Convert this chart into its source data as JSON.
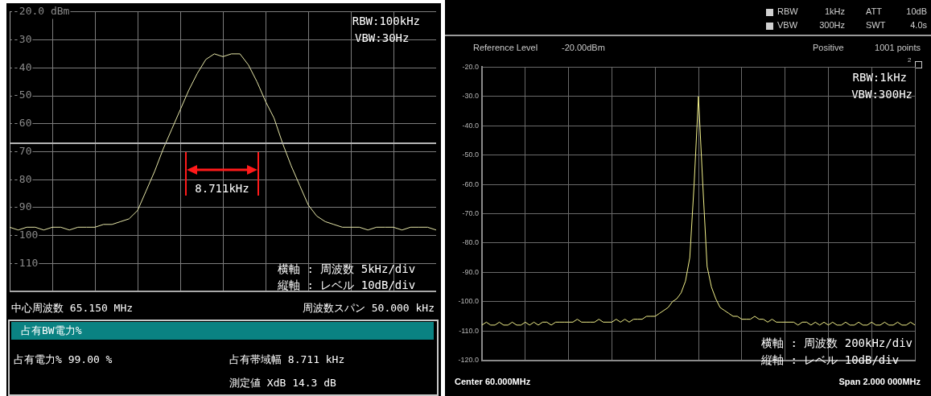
{
  "chart_data": [
    {
      "type": "line",
      "categories": [
        null,
        null,
        null,
        null,
        null,
        null,
        null,
        null,
        null,
        null,
        null,
        null,
        null,
        null,
        null,
        null,
        null,
        null,
        null,
        null,
        null,
        null,
        null,
        null,
        null,
        null,
        null,
        null,
        null,
        null,
        null,
        null,
        null,
        null,
        null,
        null,
        null,
        null,
        null,
        null,
        null,
        null,
        null,
        null,
        null,
        null,
        null,
        null,
        null,
        null,
        null
      ],
      "series": [
        {
          "color": "#e6e6a8",
          "values": [
            -97,
            -98,
            -97,
            -97,
            -98,
            -97,
            -97,
            -98,
            -97,
            -97,
            -97,
            -96,
            -96,
            -95,
            -94,
            -91,
            -84,
            -77,
            -69,
            -62,
            -55,
            -48,
            -42,
            -37,
            -35,
            -36,
            -35,
            -35,
            -39,
            -45,
            -52,
            -58,
            -67,
            -75,
            -82,
            -89,
            -93,
            -95,
            -96,
            -97,
            -97,
            -97,
            -98,
            -97,
            -97,
            -97,
            -98,
            -97,
            -97,
            -97,
            -98
          ]
        }
      ],
      "ylim": [
        -120,
        -20
      ],
      "yticks": [
        {
          "value": -20,
          "label": "-20.0 dBm"
        },
        -30,
        -40,
        -50,
        -60,
        -70,
        -80,
        -90,
        -100,
        -110,
        {
          "value": -120,
          "label": null
        }
      ],
      "grid": true,
      "marker": "none",
      "tick_labels": "y",
      "ref_lines": [
        {
          "axis": "y",
          "value": -67,
          "label": null,
          "color": "#b4b4b4"
        }
      ],
      "annotations": [
        "RBW:100kHz",
        "VBW:30Hz",
        "8.711kHz",
        "横軸 : 周波数 5kHz/div",
        "縦軸 : レベル 10dB/div",
        "中心周波数 65.150 MHz",
        "周波数スパン 50.000 kHz",
        "占有BW電力%",
        "占有電力% 99.00 %",
        "占有帯域幅 8.711 kHz",
        "測定値 XdB 14.3 dB"
      ]
    },
    {
      "type": "line",
      "categories": [
        null,
        null,
        null,
        null,
        null,
        null,
        null,
        null,
        null,
        null,
        null,
        null,
        null,
        null,
        null,
        null,
        null,
        null,
        null,
        null,
        null,
        null,
        null,
        null,
        null,
        null,
        null,
        null,
        null,
        null,
        null,
        null,
        null,
        null,
        null,
        null,
        null,
        null,
        null,
        null,
        null,
        null,
        null,
        null,
        null,
        null,
        null,
        null,
        null,
        null,
        null,
        null,
        null,
        null,
        null,
        null,
        null,
        null,
        null,
        null,
        null,
        null,
        null,
        null,
        null,
        null,
        null,
        null,
        null,
        null,
        null,
        null,
        null,
        null,
        null,
        null,
        null,
        null,
        null,
        null,
        null,
        null,
        null,
        null,
        null,
        null,
        null,
        null,
        null,
        null,
        null,
        null,
        null,
        null,
        null,
        null,
        null,
        null,
        null,
        null,
        null
      ],
      "series": [
        {
          "color": "#f2f08a",
          "values": [
            -108,
            -107,
            -108,
            -108,
            -107,
            -108,
            -108,
            -107,
            -108,
            -108,
            -107,
            -108,
            -107,
            -108,
            -107,
            -107,
            -108,
            -107,
            -107,
            -107,
            -107,
            -107,
            -106,
            -107,
            -107,
            -107,
            -107,
            -106,
            -107,
            -107,
            -107,
            -106,
            -107,
            -106,
            -107,
            -106,
            -106,
            -106,
            -105,
            -105,
            -105,
            -104,
            -103,
            -102,
            -100,
            -99,
            -97,
            -93,
            -85,
            -60,
            -30,
            -60,
            -88,
            -95,
            -99,
            -102,
            -103,
            -104,
            -105,
            -105,
            -106,
            -106,
            -106,
            -105,
            -106,
            -106,
            -107,
            -106,
            -107,
            -107,
            -107,
            -107,
            -107,
            -108,
            -107,
            -107,
            -108,
            -107,
            -108,
            -107,
            -108,
            -107,
            -108,
            -108,
            -107,
            -108,
            -108,
            -107,
            -108,
            -108,
            -107,
            -108,
            -108,
            -107,
            -108,
            -108,
            -107,
            -108,
            -108,
            -107,
            -108
          ]
        }
      ],
      "ylim": [
        -120,
        -20
      ],
      "yticks": [
        {
          "value": -20,
          "label": "-20.0"
        },
        {
          "value": -30,
          "label": "-30.0"
        },
        {
          "value": -40,
          "label": "-40.0"
        },
        {
          "value": -50,
          "label": "-50.0"
        },
        {
          "value": -60,
          "label": "-60.0"
        },
        {
          "value": -70,
          "label": "-70.0"
        },
        {
          "value": -80,
          "label": "-80.0"
        },
        {
          "value": -90,
          "label": "-90.0"
        },
        {
          "value": -100,
          "label": "-100.0"
        },
        {
          "value": -110,
          "label": "-110.0"
        },
        {
          "value": -120,
          "label": "-120.0"
        }
      ],
      "grid": true,
      "marker": "none",
      "tick_labels": "y",
      "annotations": [
        "RBW",
        "1kHz",
        "ATT",
        "10dB",
        "VBW",
        "300Hz",
        "SWT",
        "4.0s",
        "Reference Level",
        "-20.00dBm",
        "Positive",
        "1001 points",
        "2",
        "RBW:1kHz",
        "VBW:300Hz",
        "横軸 : 周波数 200kHz/div",
        "縦軸 : レベル 10dB/div",
        "Center 60.000MHz",
        "Span 2.000 000MHz"
      ]
    }
  ]
}
